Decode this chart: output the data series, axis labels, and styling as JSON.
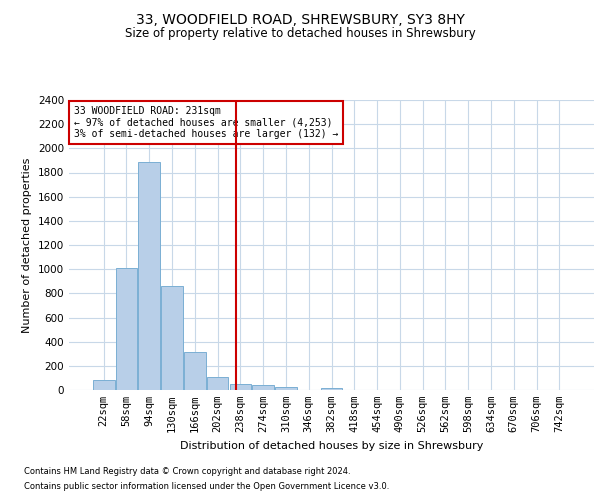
{
  "title1": "33, WOODFIELD ROAD, SHREWSBURY, SY3 8HY",
  "title2": "Size of property relative to detached houses in Shrewsbury",
  "xlabel": "Distribution of detached houses by size in Shrewsbury",
  "ylabel": "Number of detached properties",
  "bar_labels": [
    "22sqm",
    "58sqm",
    "94sqm",
    "130sqm",
    "166sqm",
    "202sqm",
    "238sqm",
    "274sqm",
    "310sqm",
    "346sqm",
    "382sqm",
    "418sqm",
    "454sqm",
    "490sqm",
    "526sqm",
    "562sqm",
    "598sqm",
    "634sqm",
    "670sqm",
    "706sqm",
    "742sqm"
  ],
  "bar_values": [
    85,
    1010,
    1890,
    860,
    315,
    110,
    50,
    40,
    25,
    0,
    20,
    0,
    0,
    0,
    0,
    0,
    0,
    0,
    0,
    0,
    0
  ],
  "bar_color": "#b8cfe8",
  "bar_edgecolor": "#7aafd4",
  "vline_color": "#cc0000",
  "annotation_text": "33 WOODFIELD ROAD: 231sqm\n← 97% of detached houses are smaller (4,253)\n3% of semi-detached houses are larger (132) →",
  "annotation_box_color": "#cc0000",
  "ylim": [
    0,
    2400
  ],
  "yticks": [
    0,
    200,
    400,
    600,
    800,
    1000,
    1200,
    1400,
    1600,
    1800,
    2000,
    2200,
    2400
  ],
  "footer1": "Contains HM Land Registry data © Crown copyright and database right 2024.",
  "footer2": "Contains public sector information licensed under the Open Government Licence v3.0.",
  "bg_color": "#ffffff",
  "grid_color": "#c8d8e8",
  "title1_fontsize": 10,
  "title2_fontsize": 8.5,
  "xlabel_fontsize": 8,
  "ylabel_fontsize": 8,
  "tick_fontsize": 7.5,
  "footer_fontsize": 6,
  "annotation_fontsize": 7
}
